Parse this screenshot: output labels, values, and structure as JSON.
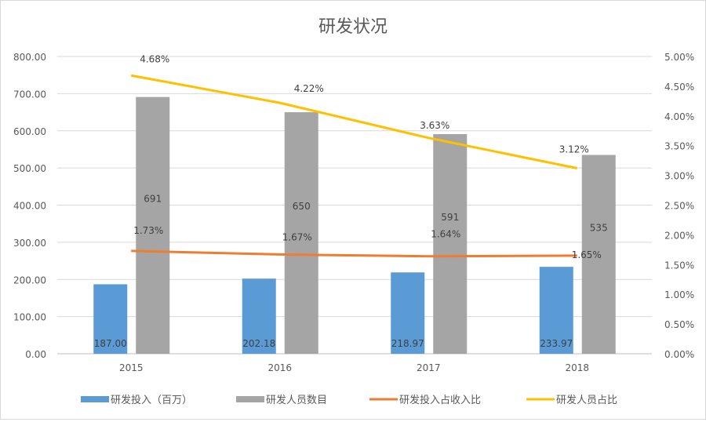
{
  "chart_data": {
    "type": "bar",
    "title": "研发状况",
    "categories": [
      "2015",
      "2016",
      "2017",
      "2018"
    ],
    "y_left": {
      "range": [
        0,
        800
      ],
      "ticks": [
        "0.00",
        "100.00",
        "200.00",
        "300.00",
        "400.00",
        "500.00",
        "600.00",
        "700.00",
        "800.00"
      ]
    },
    "y_right": {
      "range": [
        0,
        5
      ],
      "ticks": [
        "0.00%",
        "0.50%",
        "1.00%",
        "1.50%",
        "2.00%",
        "2.50%",
        "3.00%",
        "3.50%",
        "4.00%",
        "4.50%",
        "5.00%"
      ]
    },
    "grid": true,
    "legend_position": "bottom",
    "series": [
      {
        "name": "研发投入（百万）",
        "type": "bar",
        "axis": "left",
        "color": "#5b9bd5",
        "values": [
          187.0,
          202.18,
          218.97,
          233.97
        ],
        "labels": [
          "187.00",
          "202.18",
          "218.97",
          "233.97"
        ]
      },
      {
        "name": "研发人员数目",
        "type": "bar",
        "axis": "left",
        "color": "#a5a5a5",
        "values": [
          691,
          650,
          591,
          535
        ],
        "labels": [
          "691",
          "650",
          "591",
          "535"
        ]
      },
      {
        "name": "研发投入占收入比",
        "type": "line",
        "axis": "right",
        "color": "#ed7d31",
        "values": [
          1.73,
          1.67,
          1.64,
          1.65
        ],
        "labels": [
          "1.73%",
          "1.67%",
          "1.64%",
          "1.65%"
        ]
      },
      {
        "name": "研发人员占比",
        "type": "line",
        "axis": "right",
        "color": "#ffc000",
        "values": [
          4.68,
          4.22,
          3.63,
          3.12
        ],
        "labels": [
          "4.68%",
          "4.22%",
          "3.63%",
          "3.12%"
        ]
      }
    ]
  }
}
